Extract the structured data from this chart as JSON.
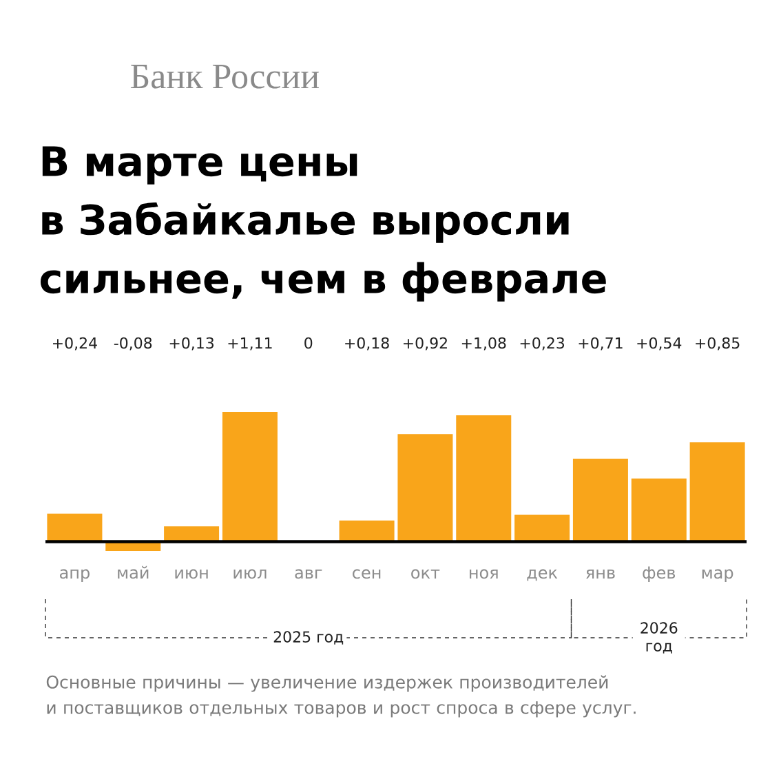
{
  "chart_data": {
    "type": "bar",
    "title": "В марте цены\nв Забайкалье выросли\nсильнее, чем в феврале",
    "categories": [
      "апр",
      "май",
      "июн",
      "июл",
      "авг",
      "сен",
      "окт",
      "ноя",
      "дек",
      "янв",
      "фев",
      "мар"
    ],
    "values": [
      0.24,
      -0.08,
      0.13,
      1.11,
      0,
      0.18,
      0.92,
      1.08,
      0.23,
      0.71,
      0.54,
      0.85
    ],
    "value_labels": [
      "+0,24",
      "-0,08",
      "+0,13",
      "+1,11",
      "0",
      "+0,18",
      "+0,92",
      "+1,08",
      "+0,23",
      "+0,71",
      "+0,54",
      "+0,85"
    ],
    "color": "#f9a51a",
    "annotations": [
      "Банк России",
      "2025 год",
      "2026 год",
      "Основные причины — увеличение издержек производителей\nи поставщиков отдельных товаров и рост спроса в сфере услуг."
    ]
  }
}
